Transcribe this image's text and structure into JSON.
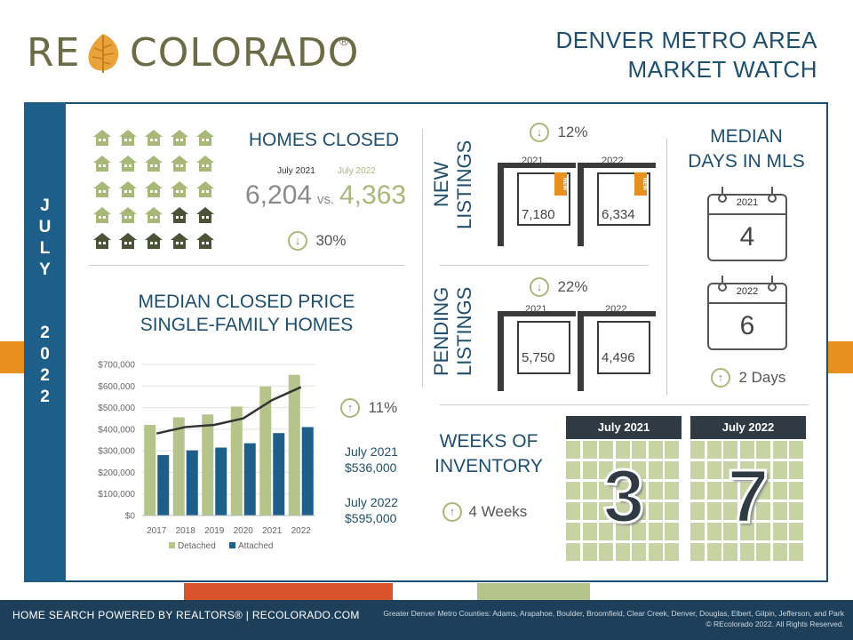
{
  "logo": {
    "text_left": "RE",
    "text_right": "COLORADO",
    "registered": "®"
  },
  "title": {
    "line1": "DENVER METRO AREA",
    "line2": "MARKET WATCH"
  },
  "month": {
    "letters": [
      "J",
      "U",
      "L",
      "Y"
    ],
    "year_digits": [
      "2",
      "0",
      "2",
      "2"
    ]
  },
  "homes_closed": {
    "title": "HOMES CLOSED",
    "label_2021": "July 2021",
    "label_2022": "July 2022",
    "value_2021": "6,204",
    "vs": "vs.",
    "value_2022": "4,363",
    "change": "30%",
    "change_icon": "arrow-down-icon",
    "house_grid": {
      "total": 25,
      "filled": 7
    }
  },
  "new_listings": {
    "title_line1": "NEW",
    "title_line2": "LISTINGS",
    "change": "12%",
    "change_icon": "arrow-down-icon",
    "year_2021": "2021",
    "year_2022": "2022",
    "value_2021": "7,180",
    "value_2022": "6,334",
    "tag": "NEW"
  },
  "pending_listings": {
    "title_line1": "PENDING",
    "title_line2": "LISTINGS",
    "change": "22%",
    "change_icon": "arrow-down-icon",
    "year_2021": "2021",
    "year_2022": "2022",
    "value_2021": "5,750",
    "value_2022": "4,496"
  },
  "days_in_mls": {
    "title_line1": "MEDIAN",
    "title_line2": "DAYS IN MLS",
    "year_2021": "2021",
    "value_2021": "4",
    "year_2022": "2022",
    "value_2022": "6",
    "change": "2 Days",
    "change_icon": "arrow-up-icon"
  },
  "price": {
    "title_line1": "MEDIAN CLOSED PRICE",
    "title_line2": "SINGLE-FAMILY HOMES",
    "change": "11%",
    "change_icon": "arrow-up-icon",
    "label_2021": "July 2021",
    "value_2021": "$536,000",
    "label_2022": "July 2022",
    "value_2022": "$595,000"
  },
  "weeks_inventory": {
    "title_line1": "WEEKS OF",
    "title_line2": "INVENTORY",
    "change": "4 Weeks",
    "change_icon": "arrow-up-icon",
    "header_2021": "July 2021",
    "value_2021": "3",
    "header_2022": "July 2022",
    "value_2022": "7"
  },
  "chart_data": {
    "type": "bar",
    "categories": [
      "2017",
      "2018",
      "2019",
      "2020",
      "2021",
      "2022"
    ],
    "series": [
      {
        "name": "Detached",
        "type": "bar",
        "color": "#b5c48a",
        "values": [
          420000,
          455000,
          468000,
          505000,
          598000,
          652000
        ]
      },
      {
        "name": "Attached",
        "type": "bar",
        "color": "#1e5f8a",
        "values": [
          280000,
          302000,
          315000,
          335000,
          382000,
          410000
        ]
      },
      {
        "type": "line",
        "color": "#333333",
        "values": [
          380000,
          410000,
          420000,
          450000,
          535000,
          595000
        ]
      }
    ],
    "yticks": [
      "$0",
      "$100,000",
      "$200,000",
      "$300,000",
      "$400,000",
      "$500,000",
      "$600,000",
      "$700,000"
    ],
    "ylim": [
      0,
      700000
    ],
    "legend_position": "bottom"
  },
  "footer": {
    "left": "HOME SEARCH POWERED BY REALTORS® | RECOLORADO.COM",
    "right_line1": "Greater Denver Metro Counties: Adams, Arapahoe, Boulder, Broomfield, Clear Creek, Denver, Douglas, Elbert, Gilpin, Jefferson, and Park",
    "right_line2": "© REcolorado 2022. All Rights Reserved."
  },
  "colors": {
    "navy": "#1e4f6e",
    "blue": "#1e5f8a",
    "green": "#b5c48a",
    "orange": "#e8901e",
    "red": "#d9542b",
    "dark": "#2f3a42"
  }
}
